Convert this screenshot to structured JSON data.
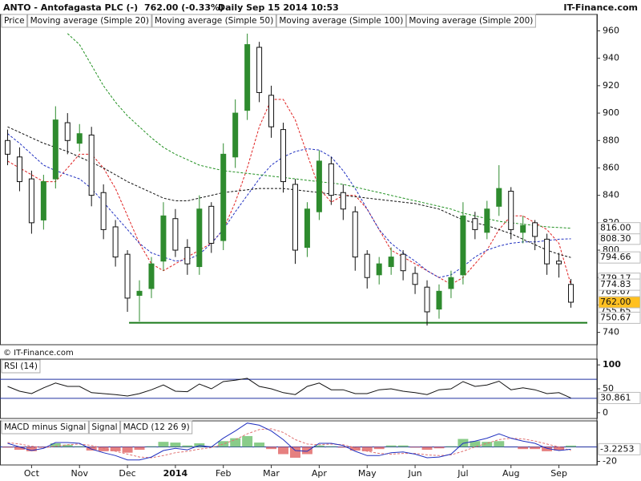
{
  "header": {
    "symbol": "ANTO - Antofagasta PLC (-)",
    "quote": "762.00 (-0.33%)",
    "period": "Daily  Sep 15 2014 10:53",
    "brand": "IT-Finance.com"
  },
  "watermark": "© IT-Finance.com",
  "chart_data": [
    {
      "type": "candlestick",
      "name": "Price",
      "categories": [
        null,
        null,
        "Oct",
        null,
        null,
        null,
        "Nov",
        null,
        null,
        null,
        "Dec",
        null,
        null,
        null,
        "2014",
        null,
        null,
        null,
        "Feb",
        null,
        null,
        null,
        "Mar",
        null,
        null,
        null,
        "Apr",
        null,
        null,
        null,
        "May",
        null,
        null,
        null,
        "Jun",
        null,
        null,
        null,
        "Jul",
        null,
        null,
        null,
        "Aug",
        null,
        null,
        null,
        "Sep",
        null
      ],
      "open": [
        880,
        868,
        852,
        822,
        852,
        893,
        878,
        884,
        842,
        817,
        797,
        767,
        772,
        792,
        823,
        802,
        788,
        832,
        807,
        868,
        902,
        948,
        913,
        888,
        848,
        802,
        828,
        863,
        842,
        828,
        797,
        782,
        788,
        797,
        783,
        773,
        757,
        772,
        782,
        823,
        813,
        832,
        843,
        813,
        820,
        808,
        792,
        775
      ],
      "high": [
        888,
        875,
        858,
        855,
        905,
        900,
        892,
        890,
        848,
        822,
        800,
        778,
        795,
        835,
        830,
        808,
        840,
        835,
        878,
        910,
        958,
        952,
        920,
        893,
        852,
        835,
        873,
        868,
        848,
        832,
        800,
        795,
        802,
        800,
        788,
        778,
        775,
        785,
        835,
        828,
        836,
        862,
        846,
        825,
        822,
        812,
        798,
        779
      ],
      "low": [
        862,
        843,
        812,
        815,
        845,
        870,
        872,
        832,
        808,
        788,
        755,
        748,
        765,
        785,
        795,
        782,
        782,
        798,
        800,
        860,
        895,
        908,
        882,
        842,
        790,
        795,
        822,
        833,
        822,
        785,
        772,
        775,
        782,
        778,
        768,
        745,
        750,
        765,
        775,
        808,
        808,
        825,
        808,
        805,
        800,
        782,
        780,
        758
      ],
      "close": [
        870,
        850,
        820,
        850,
        895,
        880,
        885,
        840,
        815,
        795,
        765,
        770,
        790,
        825,
        800,
        790,
        830,
        805,
        870,
        900,
        950,
        915,
        890,
        850,
        800,
        830,
        865,
        840,
        830,
        795,
        780,
        790,
        795,
        785,
        775,
        755,
        770,
        780,
        825,
        815,
        830,
        845,
        815,
        818,
        810,
        790,
        790,
        762
      ],
      "last_label": "762.00",
      "up_color": "#2e8b2e",
      "down_color": "#111111",
      "series": [
        {
          "name": "Moving average (Simple 20)",
          "color": "#e02020",
          "last_label": "774.83",
          "values": [
            865,
            860,
            855,
            850,
            850,
            860,
            870,
            870,
            860,
            845,
            825,
            805,
            790,
            785,
            790,
            795,
            800,
            805,
            815,
            835,
            860,
            890,
            910,
            910,
            895,
            870,
            845,
            835,
            840,
            840,
            830,
            815,
            800,
            795,
            790,
            785,
            780,
            775,
            780,
            790,
            800,
            815,
            825,
            825,
            820,
            815,
            805,
            774.83
          ]
        },
        {
          "name": "Moving average (Simple 50)",
          "color": "#2030c0",
          "last_label": "808.30",
          "values": [
            885,
            878,
            870,
            862,
            858,
            855,
            852,
            845,
            835,
            825,
            815,
            805,
            798,
            795,
            792,
            793,
            797,
            805,
            815,
            828,
            840,
            852,
            862,
            868,
            872,
            874,
            873,
            868,
            858,
            845,
            830,
            815,
            805,
            798,
            792,
            785,
            780,
            782,
            788,
            795,
            800,
            803,
            805,
            806,
            806,
            807,
            808,
            808.3
          ]
        },
        {
          "name": "Moving average (Simple 100)",
          "color": "#111111",
          "last_label": "794.66",
          "values": [
            890,
            886,
            882,
            878,
            875,
            872,
            868,
            864,
            860,
            855,
            850,
            846,
            842,
            838,
            836,
            836,
            838,
            840,
            842,
            843,
            844,
            845,
            845,
            845,
            844,
            843,
            842,
            841,
            840,
            839,
            838,
            837,
            836,
            835,
            834,
            832,
            830,
            826,
            822,
            820,
            818,
            815,
            812,
            808,
            804,
            800,
            797,
            794.66
          ]
        },
        {
          "name": "Moving average (Simple 200)",
          "color": "#209020",
          "last_label": "816.00",
          "values": [
            null,
            null,
            null,
            null,
            null,
            958,
            950,
            935,
            920,
            908,
            898,
            890,
            882,
            875,
            870,
            866,
            862,
            860,
            858,
            857,
            856,
            855,
            854,
            853,
            852,
            851,
            850,
            849,
            848,
            846,
            844,
            842,
            840,
            838,
            836,
            834,
            832,
            830,
            827,
            825,
            823,
            821,
            820,
            819,
            818,
            817,
            816.5,
            816
          ]
        }
      ],
      "markers": {
        "values": [
          779.17,
          769.67,
          755.65,
          750.67
        ],
        "value_labels": [
          "779.17",
          "769.67",
          "755.65",
          "750.67"
        ]
      },
      "support_level": 747,
      "support_color": "#1a7a1a",
      "ylim": [
        731,
        972
      ],
      "yticks": [
        740,
        760,
        780,
        800,
        820,
        840,
        860,
        880,
        900,
        920,
        940,
        960
      ]
    },
    {
      "type": "line",
      "name": "RSI (14)",
      "color": "#111111",
      "band_color": "#2030a0",
      "bands": [
        30,
        70
      ],
      "last_label": "30.861",
      "values": [
        55,
        45,
        40,
        52,
        62,
        55,
        55,
        42,
        40,
        38,
        35,
        40,
        48,
        58,
        45,
        44,
        60,
        50,
        65,
        68,
        72,
        55,
        50,
        42,
        38,
        55,
        62,
        48,
        48,
        40,
        40,
        48,
        50,
        45,
        42,
        38,
        48,
        50,
        65,
        55,
        58,
        66,
        48,
        52,
        48,
        40,
        42,
        30.861
      ],
      "ylim": [
        -12,
        112
      ],
      "yticks": [
        0,
        50,
        100
      ]
    },
    {
      "type": "macd",
      "last_label": "-3.2253",
      "series": [
        {
          "name": "MACD minus Signal",
          "color": "#e06060",
          "values": [
            -1,
            -4,
            -6,
            -1,
            5,
            3,
            1,
            -5,
            -6,
            -6,
            -8,
            -4,
            1,
            7,
            6,
            2,
            5,
            1,
            8,
            12,
            15,
            6,
            -3,
            -10,
            -15,
            -10,
            2,
            1,
            -1,
            -5,
            -6,
            -3,
            2,
            2,
            -1,
            -4,
            -2,
            1,
            11,
            8,
            7,
            8,
            0,
            -3,
            -3,
            -6,
            -5,
            1.77
          ]
        },
        {
          "name": "Signal",
          "color": "#e07070",
          "values": [
            6,
            4,
            1,
            -1,
            1,
            3,
            4,
            2,
            -2,
            -6,
            -10,
            -14,
            -15,
            -12,
            -8,
            -6,
            -3,
            -1,
            4,
            10,
            18,
            24,
            25,
            20,
            10,
            4,
            3,
            4,
            3,
            -1,
            -6,
            -9,
            -10,
            -9,
            -9,
            -11,
            -12,
            -11,
            -6,
            0,
            5,
            10,
            12,
            11,
            8,
            4,
            0,
            -5
          ]
        },
        {
          "name": "MACD (12 26 9)",
          "color": "#2030c0",
          "values": [
            5,
            0,
            -5,
            -2,
            6,
            6,
            5,
            -3,
            -8,
            -12,
            -18,
            -18,
            -14,
            -5,
            -2,
            -4,
            2,
            0,
            12,
            22,
            33,
            30,
            22,
            10,
            -5,
            -6,
            5,
            5,
            2,
            -6,
            -12,
            -12,
            -8,
            -7,
            -10,
            -15,
            -14,
            -10,
            5,
            8,
            12,
            18,
            12,
            8,
            5,
            -2,
            -5,
            -3.2253
          ]
        }
      ],
      "ylim": [
        -25,
        36
      ],
      "yticks": [
        -20
      ]
    }
  ]
}
